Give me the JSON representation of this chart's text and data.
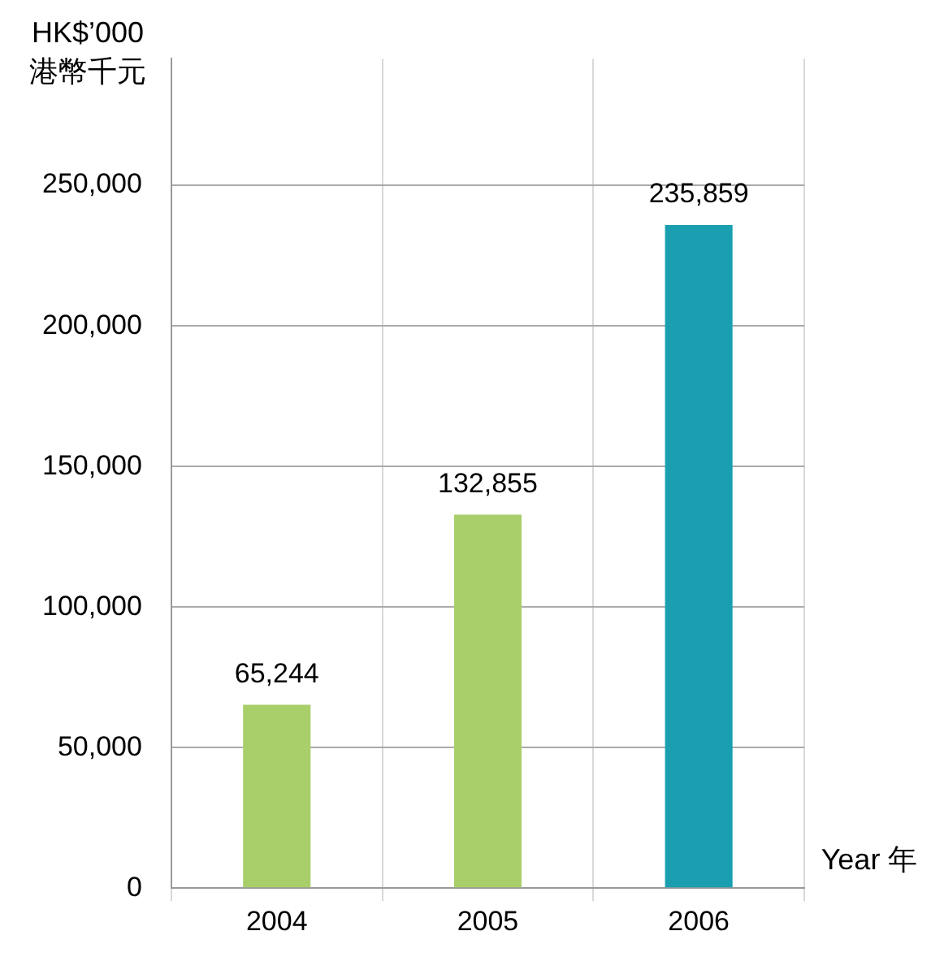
{
  "chart_data": {
    "type": "bar",
    "ylabel": "HK$’000 港幣千元",
    "xlabel": "Year 年",
    "categories": [
      "2004",
      "2005",
      "2006"
    ],
    "values": [
      65244,
      132855,
      235859
    ],
    "colors": [
      "#a8cf6a",
      "#a8cf6a",
      "#1a9fb0"
    ],
    "value_labels": [
      "65,244",
      "132,855",
      "235,859"
    ],
    "ylim": [
      0,
      295000
    ],
    "yticks": [
      0,
      {
        "value": 50000,
        "label": "50,000"
      },
      {
        "value": 100000,
        "label": "100,000"
      },
      {
        "value": 150000,
        "label": "150,000"
      },
      {
        "value": 200000,
        "label": "200,000"
      },
      {
        "value": 250000,
        "label": "250,000"
      }
    ],
    "grid": true,
    "legend": false
  }
}
